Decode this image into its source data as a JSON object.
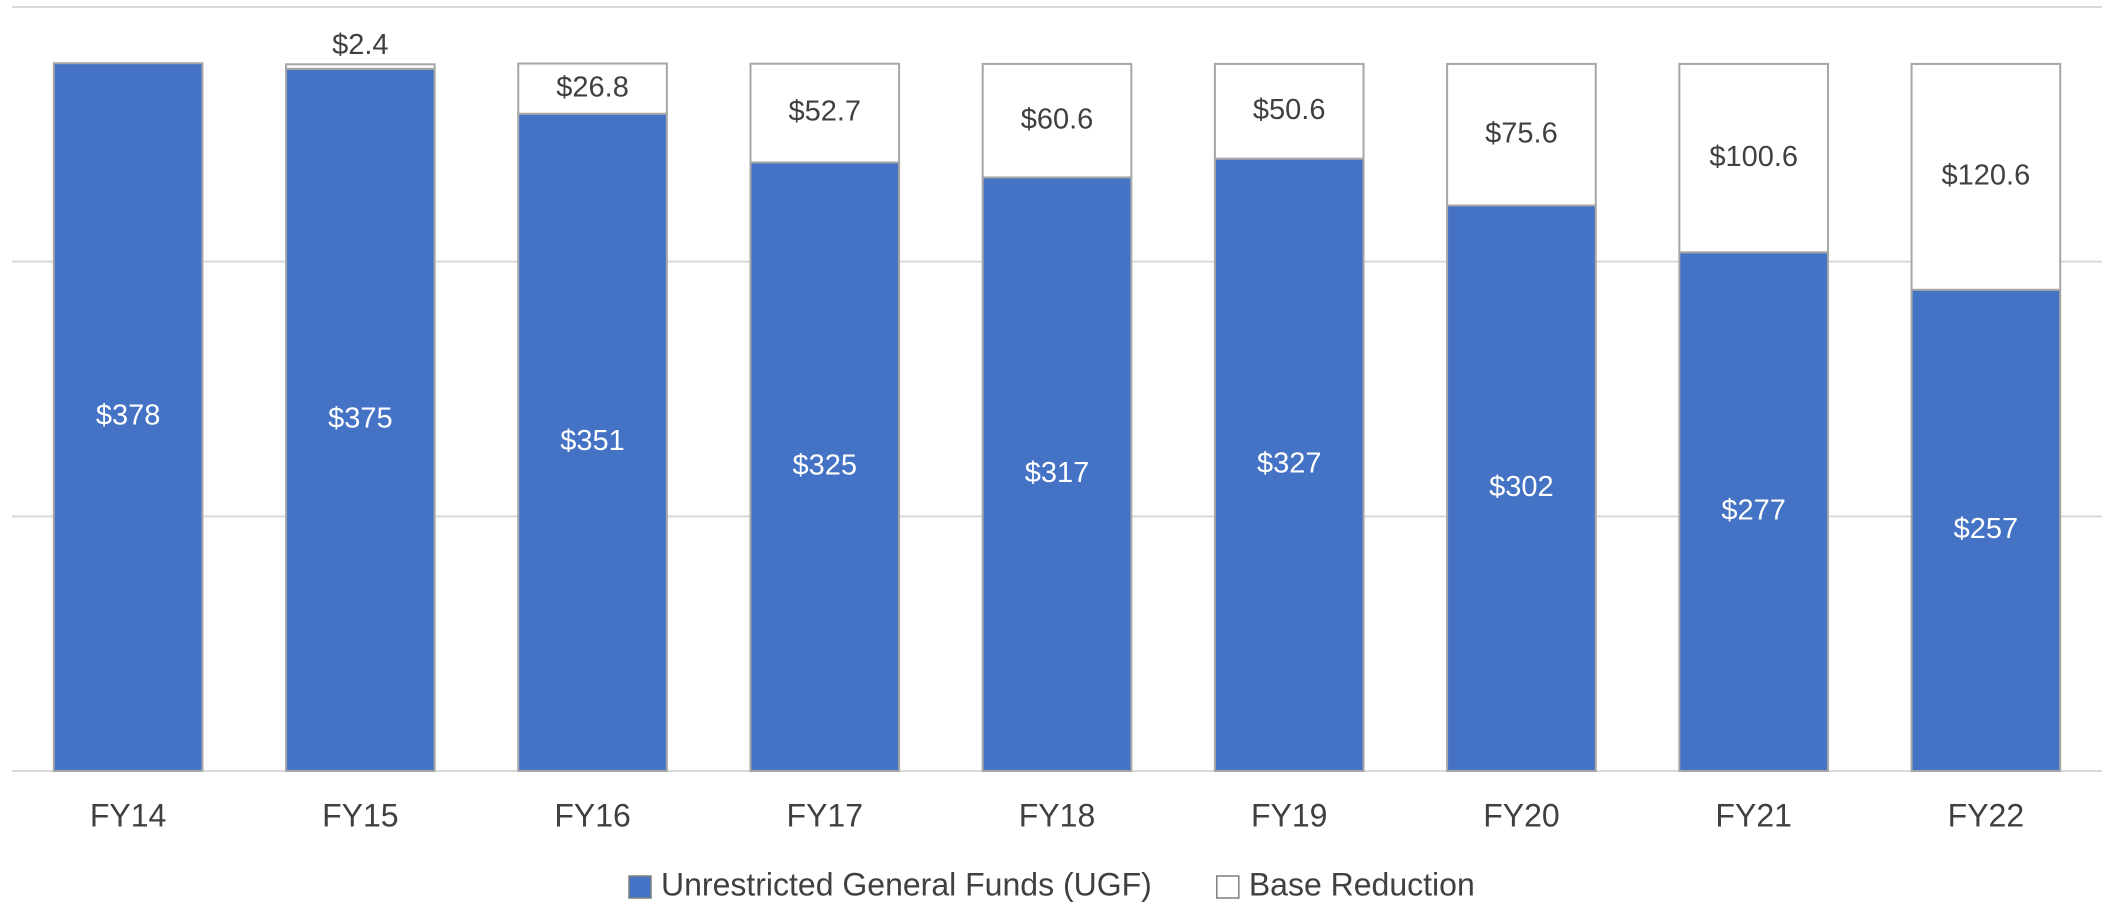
{
  "chart_data": {
    "type": "stacked_bar",
    "categories": [
      "FY14",
      "FY15",
      "FY16",
      "FY17",
      "FY18",
      "FY19",
      "FY20",
      "FY21",
      "FY22"
    ],
    "series": [
      {
        "name": "Unrestricted General Funds (UGF)",
        "color": "#4472c4",
        "values": [
          378,
          375,
          351,
          325,
          317,
          327,
          302,
          277,
          257
        ],
        "value_labels": [
          "$378",
          "$375",
          "$351",
          "$325",
          "$317",
          "$327",
          "$302",
          "$277",
          "$257"
        ]
      },
      {
        "name": "Base Reduction",
        "color": "#ffffff",
        "values": [
          null,
          2.4,
          26.8,
          52.7,
          60.6,
          50.6,
          75.6,
          100.6,
          120.6
        ],
        "value_labels": [
          null,
          "$2.4",
          "$26.8",
          "$52.7",
          "$60.6",
          "$50.6",
          "$75.6",
          "$100.6",
          "$120.6"
        ]
      }
    ],
    "ylim": [
      0,
      408
    ],
    "yticks": [
      0,
      136,
      272,
      408
    ],
    "grid": true,
    "legend": "bottom"
  }
}
